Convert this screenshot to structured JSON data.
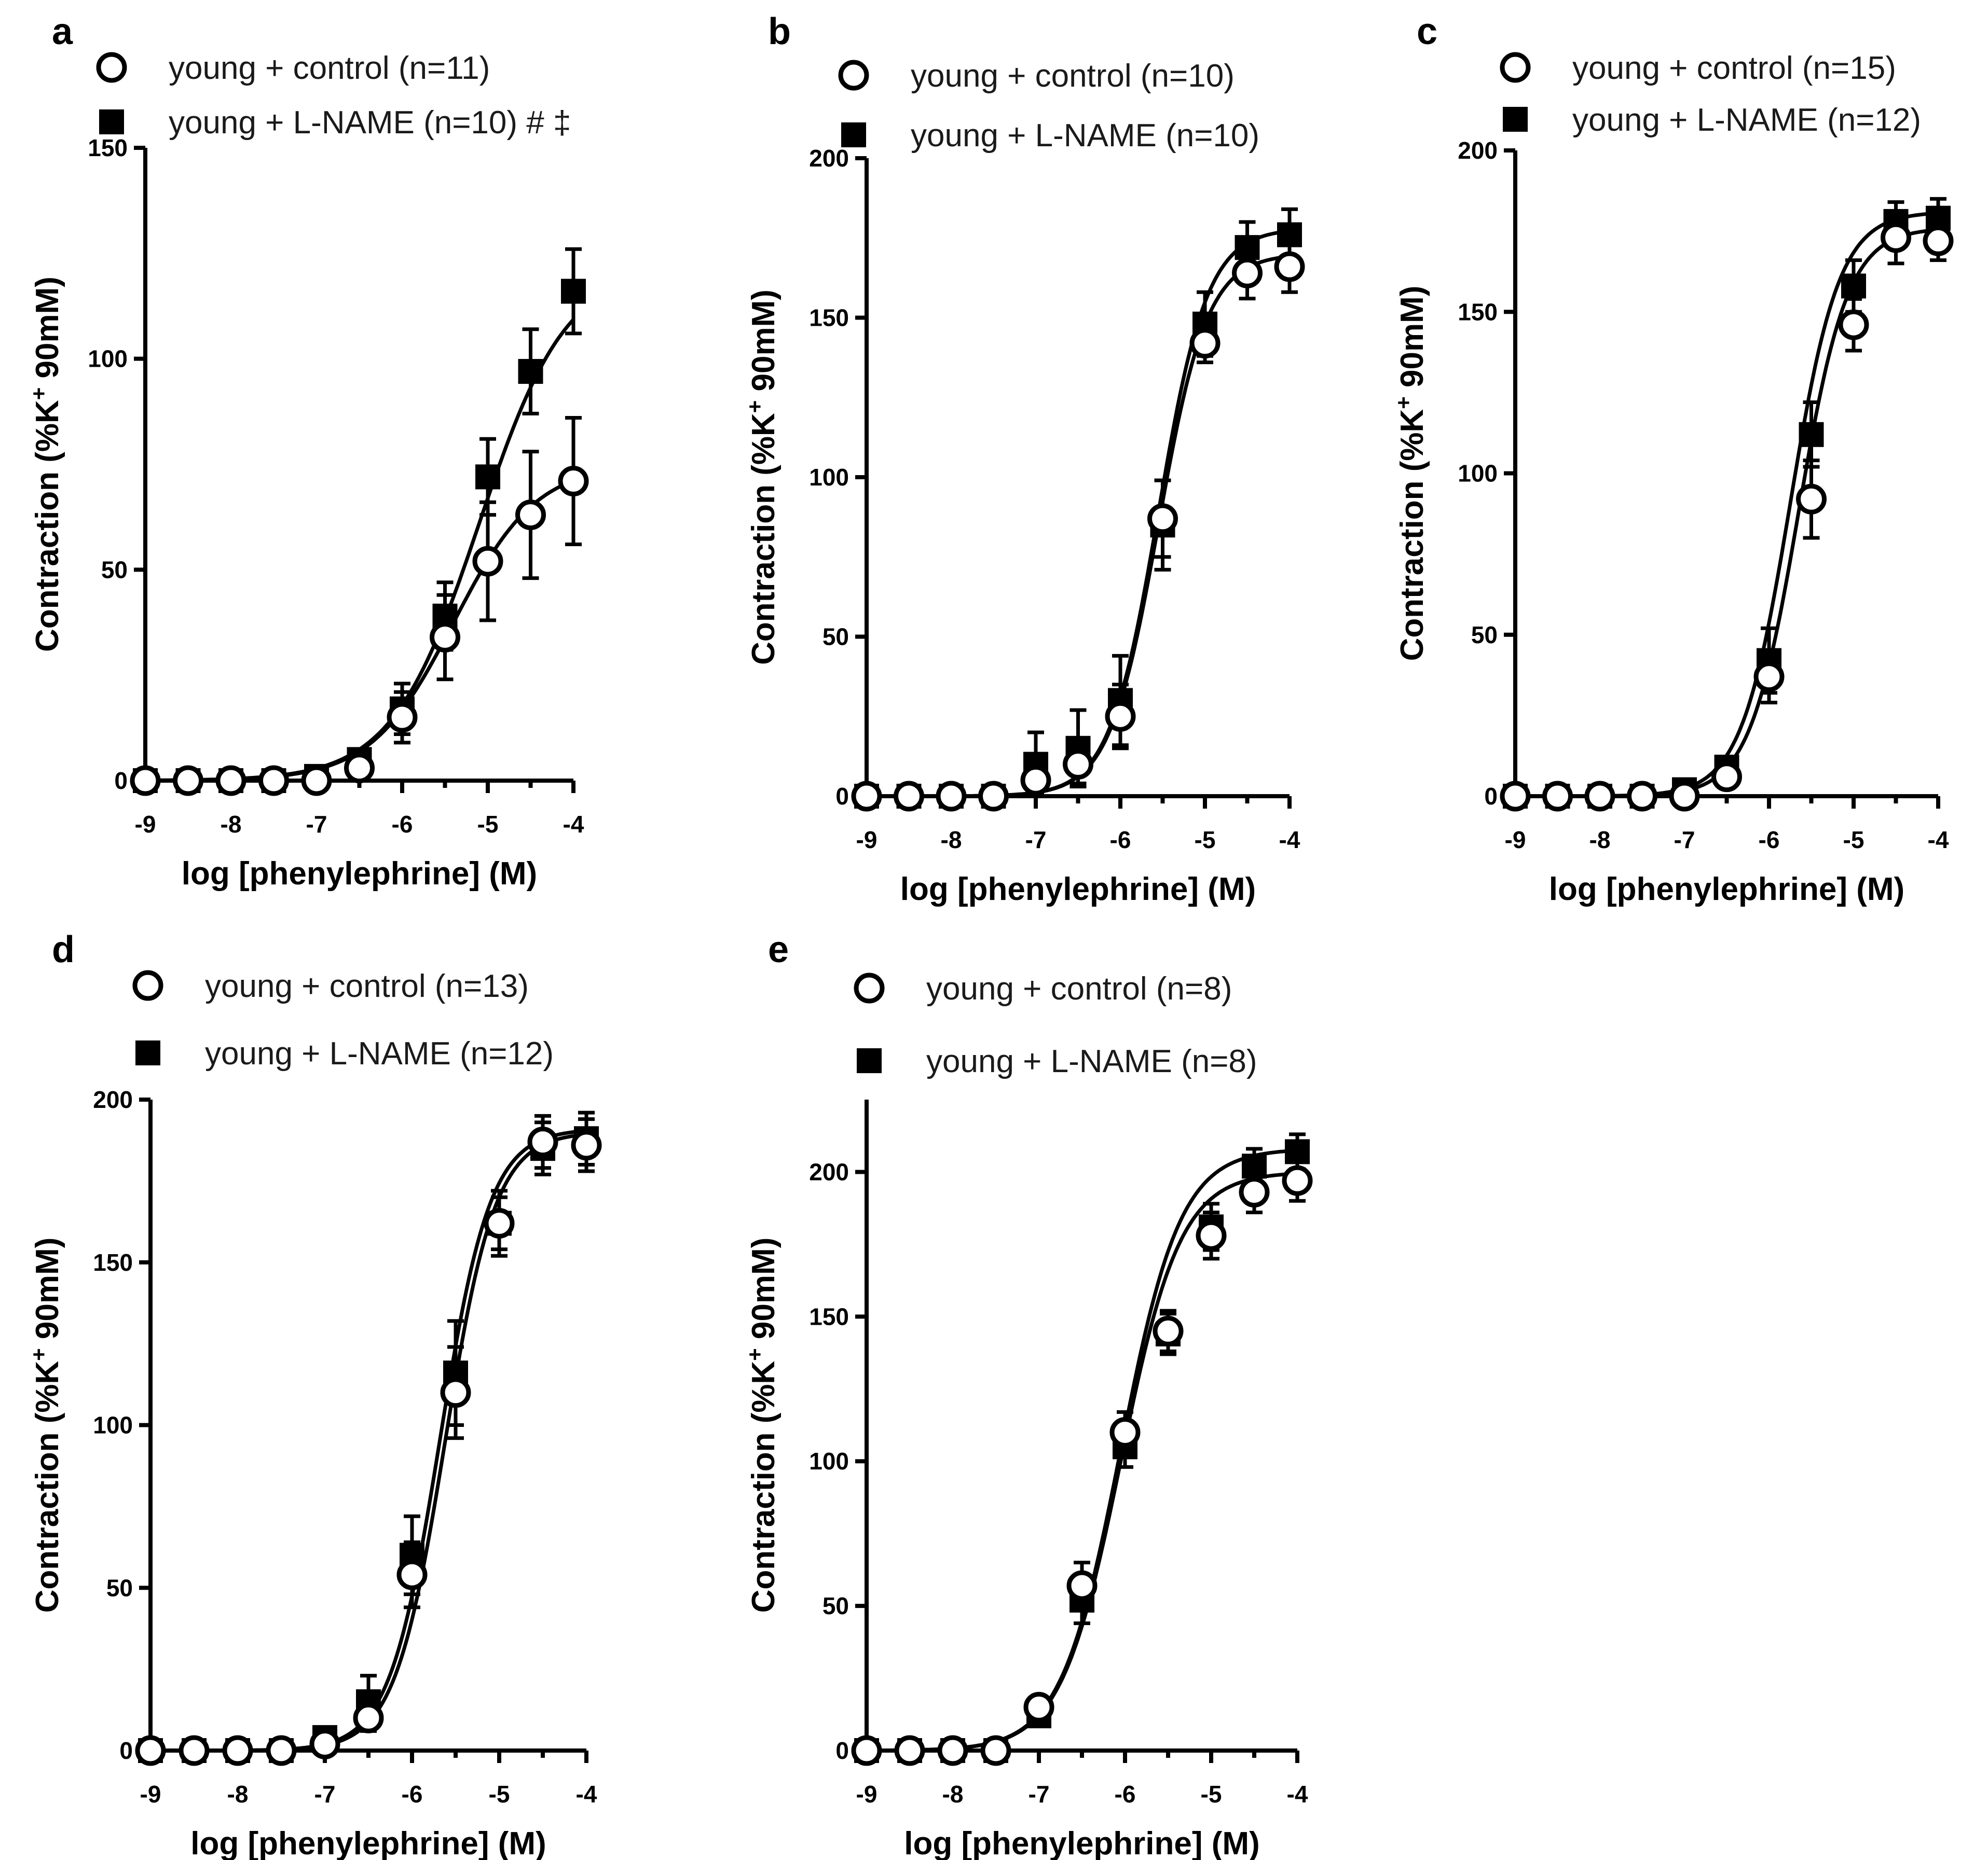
{
  "chart_data": [
    {
      "panel_label": "a",
      "type": "scatter",
      "xlabel": "log [phenylephrine] (M)",
      "ylabel": "Contraction (%K⁺ 90mM)",
      "ylabel_parts": [
        "Contraction (%K",
        "+",
        " 90mM)"
      ],
      "xlim": [
        -9,
        -4
      ],
      "ylim": [
        0,
        150
      ],
      "xticks": [
        -9,
        -8,
        -7,
        -6,
        -5,
        -4
      ],
      "yticks": [
        0,
        50,
        100,
        150
      ],
      "legend_position": "top",
      "series": [
        {
          "name": "young + control (n=11)",
          "marker": "open-circle",
          "x": [
            -9,
            -8.5,
            -8,
            -7.5,
            -7,
            -6.5,
            -6,
            -5.5,
            -5,
            -4.5,
            -4
          ],
          "y": [
            0,
            0,
            0,
            0,
            0,
            3,
            15,
            34,
            52,
            63,
            71
          ],
          "err": [
            0,
            0,
            0,
            0,
            2,
            2,
            6,
            10,
            14,
            15,
            15
          ],
          "fit": {
            "bottom": 0,
            "top": 75,
            "logec50": -5.4,
            "hill": 0.9
          }
        },
        {
          "name": "young + L-NAME (n=10) # ‡",
          "marker": "filled-square",
          "x": [
            -9,
            -8.5,
            -8,
            -7.5,
            -7,
            -6.5,
            -6,
            -5.5,
            -5,
            -4.5,
            -4
          ],
          "y": [
            0,
            0,
            0,
            0,
            1,
            5,
            17,
            39,
            72,
            97,
            116
          ],
          "err": [
            0,
            0,
            0,
            0,
            2,
            2,
            6,
            8,
            9,
            10,
            10
          ],
          "fit": {
            "bottom": 0,
            "top": 122,
            "logec50": -5.1,
            "hill": 0.85
          }
        }
      ]
    },
    {
      "panel_label": "b",
      "type": "scatter",
      "xlabel": "log [phenylephrine] (M)",
      "ylabel": "Contraction (%K⁺ 90mM)",
      "ylabel_parts": [
        "Contraction (%K",
        "+",
        " 90mM)"
      ],
      "xlim": [
        -9,
        -4
      ],
      "ylim": [
        0,
        200
      ],
      "xticks": [
        -9,
        -8,
        -7,
        -6,
        -5,
        -4
      ],
      "yticks": [
        0,
        50,
        100,
        150,
        200
      ],
      "legend_position": "top",
      "series": [
        {
          "name": "young + control (n=10)",
          "marker": "open-circle",
          "x": [
            -9,
            -8.5,
            -8,
            -7.5,
            -7,
            -6.5,
            -6,
            -5.5,
            -5,
            -4.5,
            -4
          ],
          "y": [
            0,
            0,
            0,
            0,
            5,
            10,
            25,
            87,
            142,
            164,
            166
          ],
          "err": [
            0,
            0,
            0,
            0,
            4,
            6,
            10,
            12,
            6,
            8,
            8
          ],
          "fit": {
            "bottom": 0,
            "top": 170,
            "logec50": -5.55,
            "hill": 1.5
          }
        },
        {
          "name": "young + L-NAME (n=10)",
          "marker": "filled-square",
          "x": [
            -9,
            -8.5,
            -8,
            -7.5,
            -7,
            -6.5,
            -6,
            -5.5,
            -5,
            -4.5,
            -4
          ],
          "y": [
            0,
            0,
            0,
            0,
            10,
            15,
            30,
            85,
            148,
            172,
            176
          ],
          "err": [
            0,
            0,
            0,
            0,
            10,
            12,
            14,
            14,
            10,
            8,
            8
          ],
          "fit": {
            "bottom": 0,
            "top": 178,
            "logec50": -5.55,
            "hill": 1.5
          }
        }
      ]
    },
    {
      "panel_label": "c",
      "type": "scatter",
      "xlabel": "log [phenylephrine] (M)",
      "ylabel": "Contraction (%K⁺ 90mM)",
      "ylabel_parts": [
        "Contraction (%K",
        "+",
        " 90mM)"
      ],
      "xlim": [
        -9,
        -4
      ],
      "ylim": [
        0,
        200
      ],
      "xticks": [
        -9,
        -8,
        -7,
        -6,
        -5,
        -4
      ],
      "yticks": [
        0,
        50,
        100,
        150,
        200
      ],
      "legend_position": "top",
      "series": [
        {
          "name": "young + control (n=15)",
          "marker": "open-circle",
          "x": [
            -9,
            -8.5,
            -8,
            -7.5,
            -7,
            -6.5,
            -6,
            -5.5,
            -5,
            -4.5,
            -4
          ],
          "y": [
            0,
            0,
            0,
            0,
            0,
            6,
            37,
            92,
            146,
            173,
            172
          ],
          "err": [
            0,
            0,
            0,
            0,
            2,
            2,
            8,
            12,
            8,
            8,
            6
          ],
          "fit": {
            "bottom": 0,
            "top": 176,
            "logec50": -5.65,
            "hill": 1.5
          }
        },
        {
          "name": "young + L-NAME (n=12)",
          "marker": "filled-square",
          "x": [
            -9,
            -8.5,
            -8,
            -7.5,
            -7,
            -6.5,
            -6,
            -5.5,
            -5,
            -4.5,
            -4
          ],
          "y": [
            0,
            0,
            0,
            0,
            2,
            9,
            42,
            112,
            158,
            178,
            179
          ],
          "err": [
            0,
            0,
            0,
            0,
            2,
            2,
            10,
            10,
            8,
            6,
            6
          ],
          "fit": {
            "bottom": 0,
            "top": 181,
            "logec50": -5.75,
            "hill": 1.5
          }
        }
      ]
    },
    {
      "panel_label": "d",
      "type": "scatter",
      "xlabel": "log [phenylephrine] (M)",
      "ylabel": "Contraction (%K⁺ 90mM)",
      "ylabel_parts": [
        "Contraction (%K",
        "+",
        " 90mM)"
      ],
      "xlim": [
        -9,
        -4
      ],
      "ylim": [
        0,
        200
      ],
      "xticks": [
        -9,
        -8,
        -7,
        -6,
        -5,
        -4
      ],
      "yticks": [
        0,
        50,
        100,
        150,
        200
      ],
      "legend_position": "top",
      "series": [
        {
          "name": "young + control (n=13)",
          "marker": "open-circle",
          "x": [
            -9,
            -8.5,
            -8,
            -7.5,
            -7,
            -6.5,
            -6,
            -5.5,
            -5,
            -4.5,
            -4
          ],
          "y": [
            0,
            0,
            0,
            0,
            2,
            10,
            54,
            110,
            162,
            187,
            186
          ],
          "err": [
            0,
            0,
            0,
            0,
            2,
            4,
            10,
            14,
            8,
            8,
            8
          ],
          "fit": {
            "bottom": 0,
            "top": 190,
            "logec50": -5.62,
            "hill": 1.5
          }
        },
        {
          "name": "young + L-NAME (n=12)",
          "marker": "filled-square",
          "x": [
            -9,
            -8.5,
            -8,
            -7.5,
            -7,
            -6.5,
            -6,
            -5.5,
            -5,
            -4.5,
            -4
          ],
          "y": [
            0,
            0,
            0,
            0,
            4,
            15,
            60,
            116,
            162,
            185,
            188
          ],
          "err": [
            0,
            0,
            0,
            0,
            2,
            8,
            12,
            16,
            10,
            8,
            8
          ],
          "fit": {
            "bottom": 0,
            "top": 191,
            "logec50": -5.68,
            "hill": 1.5
          }
        }
      ]
    },
    {
      "panel_label": "e",
      "type": "scatter",
      "xlabel": "log [phenylephrine] (M)",
      "ylabel": "Contraction (%K⁺ 90mM)",
      "ylabel_parts": [
        "Contraction (%K",
        "+",
        " 90mM)"
      ],
      "xlim": [
        -9,
        -4
      ],
      "ylim": [
        0,
        225
      ],
      "xticks": [
        -9,
        -8,
        -7,
        -6,
        -5,
        -4
      ],
      "yticks": [
        0,
        50,
        100,
        150,
        200
      ],
      "legend_position": "top",
      "series": [
        {
          "name": "young + control (n=8)",
          "marker": "open-circle",
          "x": [
            -9,
            -8.5,
            -8,
            -7.5,
            -7,
            -6.5,
            -6,
            -5.5,
            -5,
            -4.5,
            -4
          ],
          "y": [
            0,
            0,
            0,
            0,
            15,
            57,
            110,
            145,
            178,
            193,
            197
          ],
          "err": [
            0,
            0,
            0,
            0,
            3,
            8,
            7,
            7,
            8,
            7,
            7
          ],
          "fit": {
            "bottom": 0,
            "top": 200,
            "logec50": -6.05,
            "hill": 1.25
          }
        },
        {
          "name": "young + L-NAME (n=8)",
          "marker": "filled-square",
          "x": [
            -9,
            -8.5,
            -8,
            -7.5,
            -7,
            -6.5,
            -6,
            -5.5,
            -5,
            -4.5,
            -4
          ],
          "y": [
            0,
            0,
            0,
            0,
            12,
            52,
            105,
            144,
            181,
            202,
            207
          ],
          "err": [
            0,
            0,
            0,
            0,
            3,
            8,
            7,
            7,
            8,
            6,
            6
          ],
          "fit": {
            "bottom": 0,
            "top": 208,
            "logec50": -6.05,
            "hill": 1.25
          }
        }
      ]
    }
  ]
}
